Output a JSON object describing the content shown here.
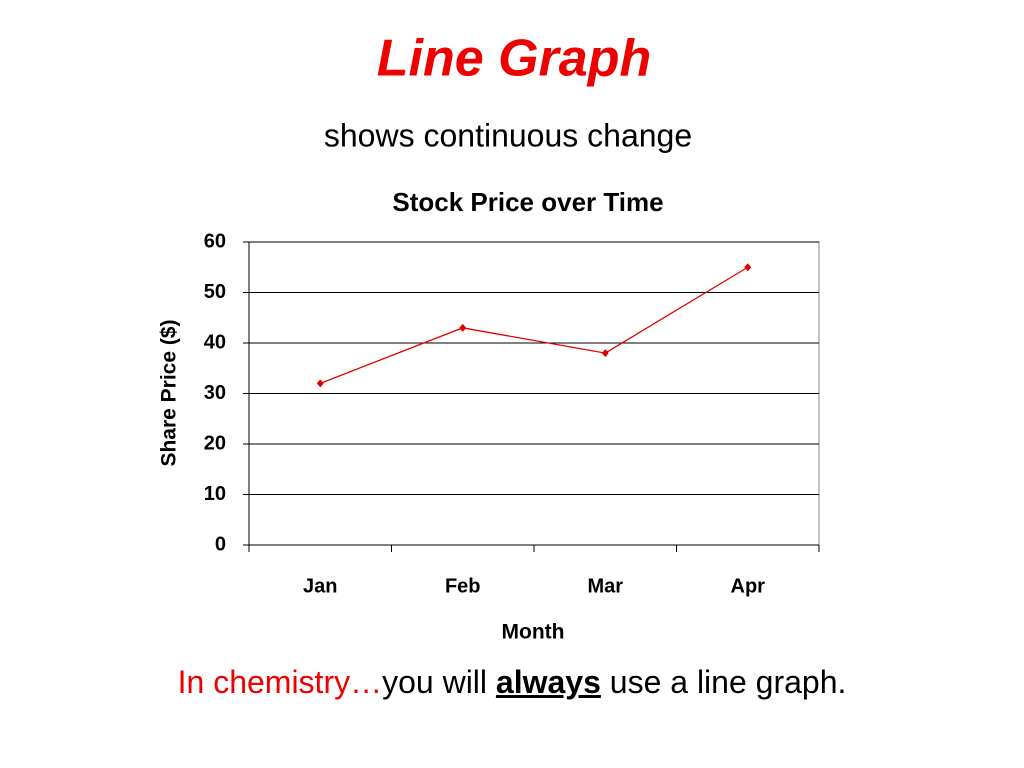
{
  "slide": {
    "title": "Line Graph",
    "subtitle": "shows continuous change"
  },
  "chart_data": {
    "type": "line",
    "title": "Stock Price over Time",
    "x_label": "Month",
    "y_label": "Share Price ($)",
    "categories": [
      "Jan",
      "Feb",
      "Mar",
      "Apr"
    ],
    "values": [
      32,
      43,
      38,
      55
    ],
    "color": "#e00000",
    "ylim": [
      0,
      60
    ],
    "yticks": [
      0,
      10,
      20,
      30,
      40,
      50,
      60
    ],
    "grid": true
  },
  "footer": {
    "lead": "In chemistry…",
    "text1": "you will",
    "emphasis": "always",
    "text2": "use a line graph."
  }
}
